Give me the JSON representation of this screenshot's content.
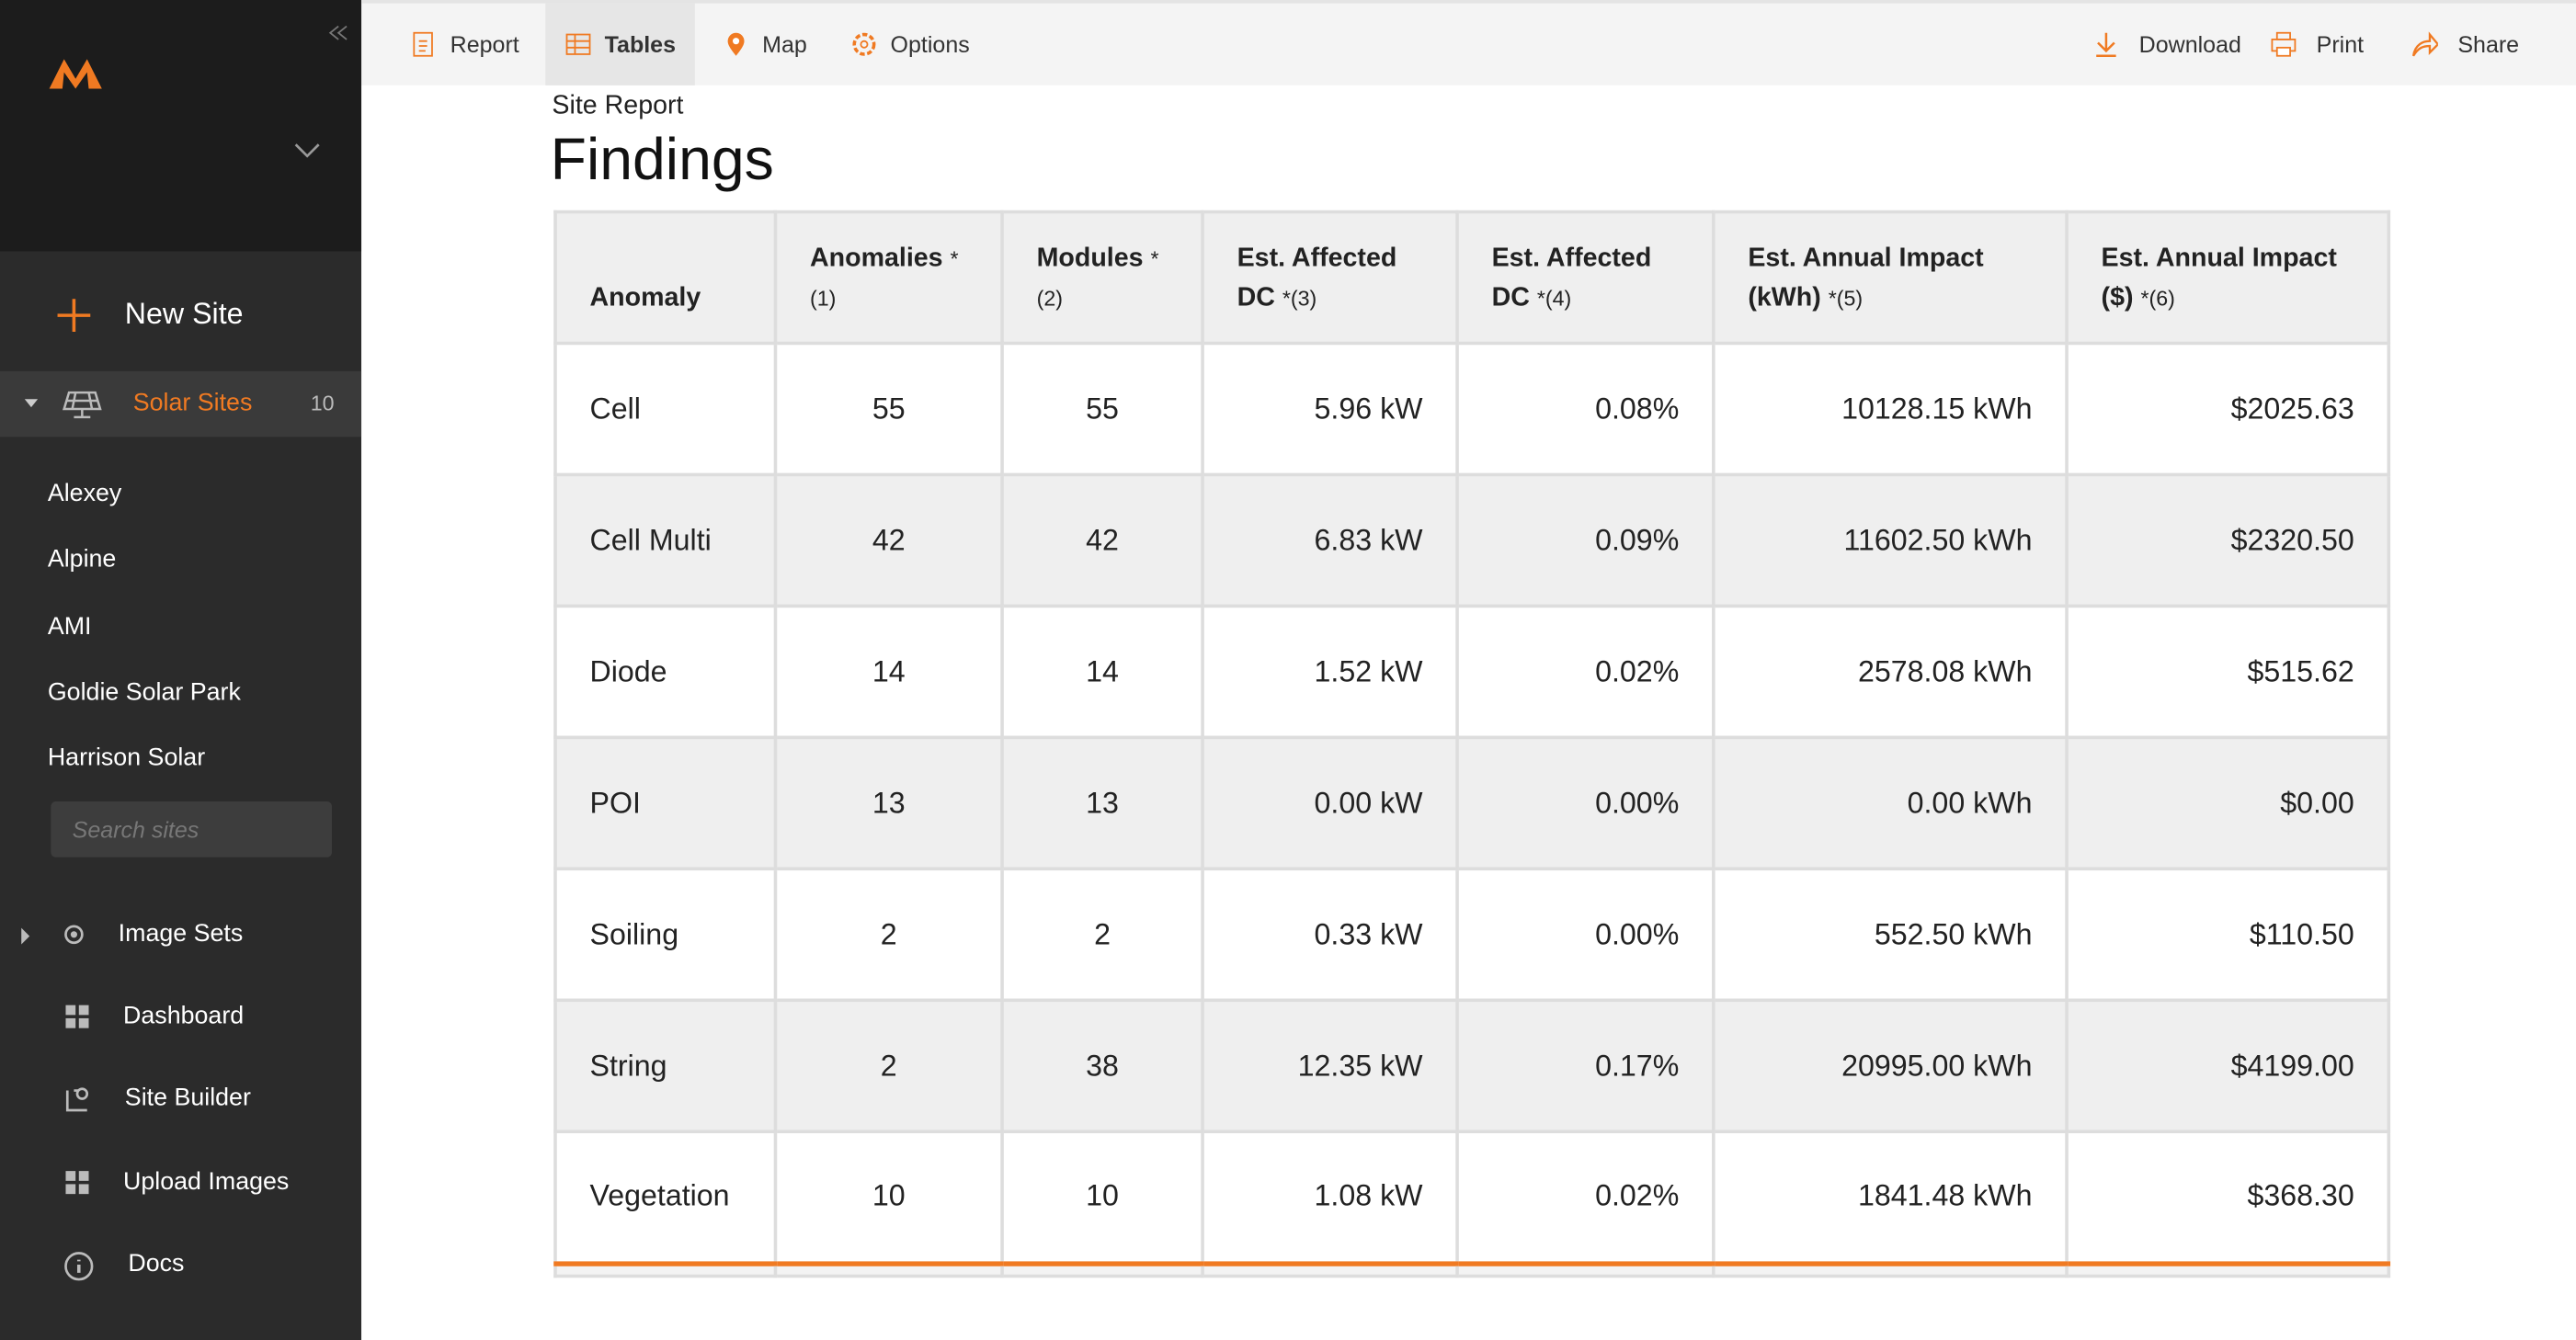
{
  "sidebar": {
    "new_site": "New Site",
    "solar_sites": {
      "label": "Solar Sites",
      "count": 10
    },
    "sites": [
      "Alexey",
      "Alpine",
      "AMI",
      "Goldie Solar Park",
      "Harrison Solar"
    ],
    "search_placeholder": "Search sites",
    "nav": [
      "Image Sets",
      "Dashboard",
      "Site Builder",
      "Upload Images",
      "Docs"
    ]
  },
  "toolbar": {
    "left": [
      "Report",
      "Tables",
      "Map",
      "Options"
    ],
    "right": [
      "Download",
      "Print",
      "Share"
    ]
  },
  "header": {
    "subtitle": "Site Report",
    "title": "Findings"
  },
  "table": {
    "columns": [
      {
        "label": "Anomaly"
      },
      {
        "label": "Anomalies",
        "note": "*(1)"
      },
      {
        "label": "Modules",
        "note": "*(2)"
      },
      {
        "label": "Est. Affected DC",
        "note": "*(3)"
      },
      {
        "label": "Est. Affected DC",
        "note": "*(4)"
      },
      {
        "label": "Est. Annual Impact (kWh)",
        "note": "*(5)"
      },
      {
        "label": "Est. Annual Impact ($)",
        "note": "*(6)"
      }
    ],
    "rows": [
      [
        "Cell",
        "55",
        "55",
        "5.96 kW",
        "0.08%",
        "10128.15 kWh",
        "$2025.63"
      ],
      [
        "Cell Multi",
        "42",
        "42",
        "6.83 kW",
        "0.09%",
        "11602.50 kWh",
        "$2320.50"
      ],
      [
        "Diode",
        "14",
        "14",
        "1.52 kW",
        "0.02%",
        "2578.08 kWh",
        "$515.62"
      ],
      [
        "POI",
        "13",
        "13",
        "0.00 kW",
        "0.00%",
        "0.00 kWh",
        "$0.00"
      ],
      [
        "Soiling",
        "2",
        "2",
        "0.33 kW",
        "0.00%",
        "552.50 kWh",
        "$110.50"
      ],
      [
        "String",
        "2",
        "38",
        "12.35 kW",
        "0.17%",
        "20995.00 kWh",
        "$4199.00"
      ],
      [
        "Vegetation",
        "10",
        "10",
        "1.08 kW",
        "0.02%",
        "1841.48 kWh",
        "$368.30"
      ]
    ]
  }
}
